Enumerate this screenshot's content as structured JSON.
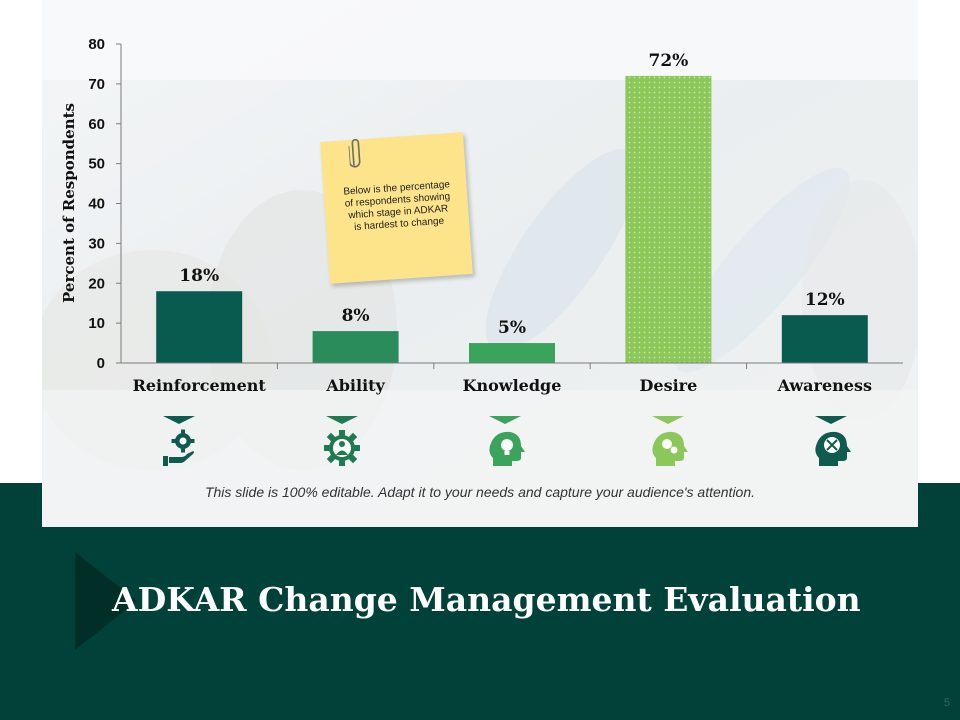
{
  "slide": {
    "title": "ADKAR Change Management Evaluation",
    "footnote": "This slide is 100% editable. Adapt it to your needs and capture your audience's attention.",
    "page_number": "5"
  },
  "note": {
    "text": "Below is the percentage of respondents showing which stage in ADKAR is hardest to change"
  },
  "chart_data": {
    "type": "bar",
    "categories": [
      "Reinforcement",
      "Ability",
      "Knowledge",
      "Desire",
      "Awareness"
    ],
    "values": [
      18,
      8,
      5,
      72,
      12
    ],
    "data_labels": [
      "18%",
      "8%",
      "5%",
      "72%",
      "12%"
    ],
    "ylabel": "Percent of Respondents",
    "xlabel": "",
    "ylim": [
      0,
      80
    ],
    "yticks": [
      0,
      10,
      20,
      30,
      40,
      50,
      60,
      70,
      80
    ],
    "grid": false,
    "legend": "none",
    "bar_colors": [
      "#0a5b4f",
      "#2a8c5b",
      "#3aa35c",
      "#8cc75a",
      "#0a5b4f"
    ],
    "pattern_bars": [
      "Desire"
    ]
  },
  "icons": [
    {
      "name": "hand-gear-icon",
      "color": "#0f5b4f"
    },
    {
      "name": "gear-person-icon",
      "color": "#1f7a52"
    },
    {
      "name": "head-bulb-icon",
      "color": "#3aa35c"
    },
    {
      "name": "head-gears-icon",
      "color": "#8cc75a"
    },
    {
      "name": "head-expand-icon",
      "color": "#0f5b4f"
    }
  ],
  "colors": {
    "dark_green": "#004239",
    "accent_green": "#0a5b4f",
    "light_green": "#8cc75a"
  }
}
